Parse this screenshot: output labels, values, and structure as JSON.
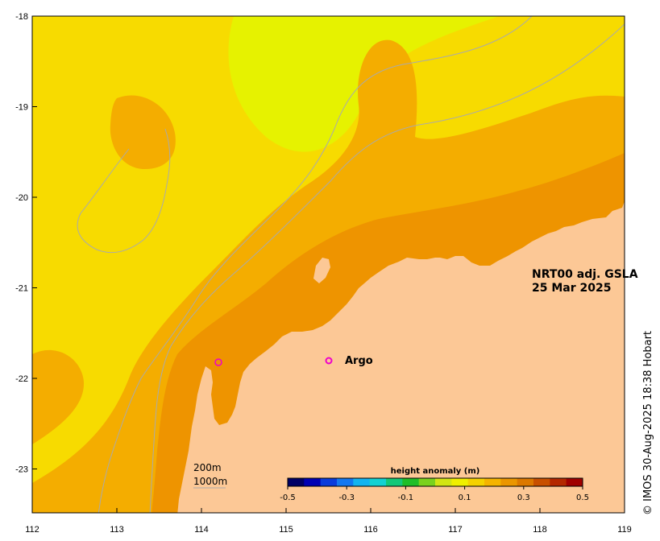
{
  "map": {
    "title_line1": "NRT00 adj. GSLA",
    "title_line2": "25 Mar 2025",
    "credit": "© IMOS 30-Aug-2025 18:38 Hobart",
    "marker_label": "Argo",
    "depth_label_1": "200m",
    "depth_label_2": "1000m",
    "lon_ticks": [
      "112",
      "113",
      "114",
      "115",
      "116",
      "117",
      "118",
      "119"
    ],
    "lat_ticks": [
      "-18",
      "-19",
      "-20",
      "-21",
      "-22",
      "-23"
    ],
    "colorbar": {
      "title": "height anomaly (m)",
      "tick_labels": [
        "-0.5",
        "-0.3",
        "-0.1",
        "0.1",
        "0.3",
        "0.5"
      ],
      "colors": [
        "#000066",
        "#0000b4",
        "#0a3cdc",
        "#1478f0",
        "#14b4f0",
        "#14d2d2",
        "#14c878",
        "#1ebe28",
        "#7ad21e",
        "#d2e614",
        "#f0f000",
        "#f5d200",
        "#f5b400",
        "#eb9600",
        "#dc7800",
        "#c85000",
        "#b42800",
        "#a00000"
      ]
    },
    "colors": {
      "land": "#fcc896",
      "lev_yellowgreen": "#ddf000",
      "lev_yellow": "#e6f200",
      "lev_gold": "#f7db00",
      "lev_orange": "#f4ad00",
      "lev_darkorange": "#ee9400",
      "lev_deep": "#e88800",
      "contour": "#aaaaaa",
      "argo": "#ee00cc"
    }
  }
}
